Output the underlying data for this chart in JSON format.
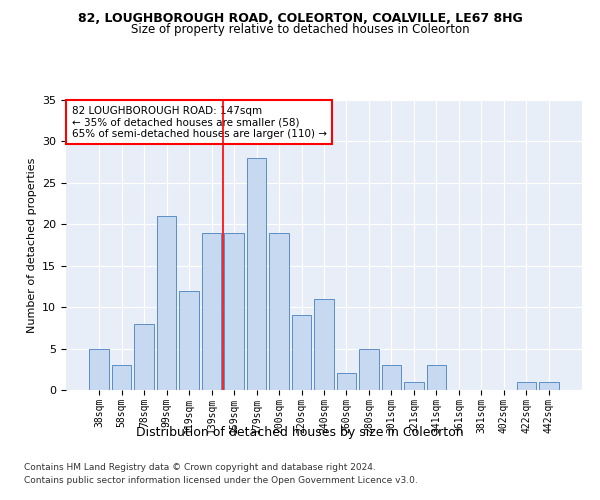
{
  "title1": "82, LOUGHBOROUGH ROAD, COLEORTON, COALVILLE, LE67 8HG",
  "title2": "Size of property relative to detached houses in Coleorton",
  "xlabel": "Distribution of detached houses by size in Coleorton",
  "ylabel": "Number of detached properties",
  "categories": [
    "38sqm",
    "58sqm",
    "78sqm",
    "99sqm",
    "119sqm",
    "139sqm",
    "159sqm",
    "179sqm",
    "200sqm",
    "220sqm",
    "240sqm",
    "260sqm",
    "280sqm",
    "301sqm",
    "321sqm",
    "341sqm",
    "361sqm",
    "381sqm",
    "402sqm",
    "422sqm",
    "442sqm"
  ],
  "values": [
    5,
    3,
    8,
    21,
    12,
    19,
    19,
    28,
    19,
    9,
    11,
    2,
    5,
    3,
    1,
    3,
    0,
    0,
    0,
    1,
    1
  ],
  "bar_color": "#c6d9f1",
  "bar_edge_color": "#5b8ec7",
  "vline_color": "red",
  "vline_pos": 5.5,
  "annotation_text": "82 LOUGHBOROUGH ROAD: 147sqm\n← 35% of detached houses are smaller (58)\n65% of semi-detached houses are larger (110) →",
  "annotation_box_color": "white",
  "annotation_box_edge": "red",
  "ylim": [
    0,
    35
  ],
  "yticks": [
    0,
    5,
    10,
    15,
    20,
    25,
    30,
    35
  ],
  "background_color": "#e8eef8",
  "grid_color": "white",
  "footnote1": "Contains HM Land Registry data © Crown copyright and database right 2024.",
  "footnote2": "Contains public sector information licensed under the Open Government Licence v3.0."
}
